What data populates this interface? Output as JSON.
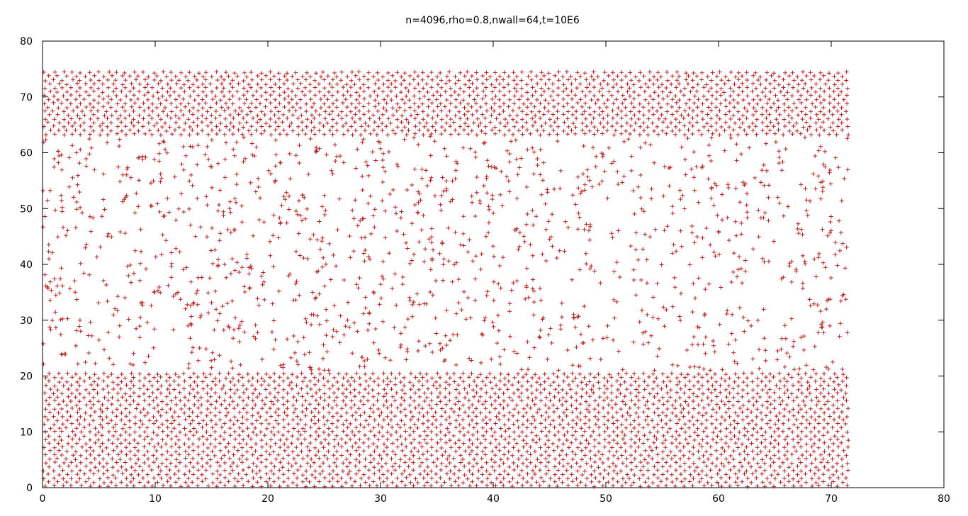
{
  "chart_data": {
    "type": "scatter",
    "title": "n=4096,rho=0.8,nwall=64,t=10E6",
    "xlabel": "",
    "ylabel": "",
    "xlim": [
      0,
      80
    ],
    "ylim": [
      0,
      80
    ],
    "xticks": [
      0,
      10,
      20,
      30,
      40,
      50,
      60,
      70,
      80
    ],
    "yticks": [
      0,
      10,
      20,
      30,
      40,
      50,
      60,
      70,
      80
    ],
    "grid": false,
    "legend": "none",
    "marker": "plus",
    "color": "#b22222",
    "regions": [
      {
        "name": "lower dense crystal",
        "x_range": [
          0,
          71.5
        ],
        "y_range": [
          0,
          21
        ],
        "approx_spacing": 0.8
      },
      {
        "name": "upper dense crystal",
        "x_range": [
          0,
          71.5
        ],
        "y_range": [
          63,
          74.5
        ],
        "approx_spacing": 0.8
      },
      {
        "name": "sparse gas",
        "x_range": [
          0,
          71.5
        ],
        "y_range": [
          21,
          63
        ],
        "approx_density": 0.045
      }
    ]
  }
}
